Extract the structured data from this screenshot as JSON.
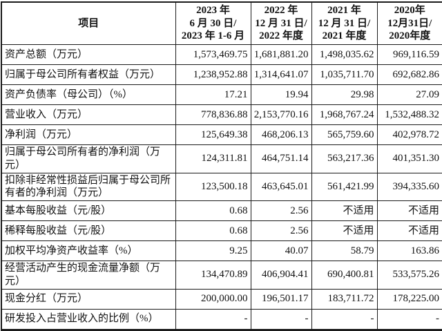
{
  "table": {
    "header": {
      "item_label": "项目",
      "periods": [
        {
          "line1": "2023 年",
          "line2": "6 月 30 日/",
          "line3": "2023 年 1-6 月"
        },
        {
          "line1": "2022 年",
          "line2": "12 月 31 日/",
          "line3": "2022 年度"
        },
        {
          "line1": "2021 年",
          "line2": "12 月 31 日/",
          "line3": "2021 年度"
        },
        {
          "line1": "2020年",
          "line2": "12月31日/",
          "line3": "2020年度"
        }
      ]
    },
    "rows": [
      {
        "label": "资产总额（万元）",
        "values": [
          "1,573,469.75",
          "1,681,881.20",
          "1,498,035.62",
          "969,116.59"
        ]
      },
      {
        "label": "归属于母公司所有者权益（万元）",
        "values": [
          "1,238,952.88",
          "1,314,641.07",
          "1,035,711.70",
          "692,682.86"
        ]
      },
      {
        "label": "资产负债率（母公司）（%）",
        "values": [
          "17.21",
          "19.94",
          "29.98",
          "27.09"
        ]
      },
      {
        "label": "营业收入（万元）",
        "values": [
          "778,836.88",
          "2,153,770.16",
          "1,968,767.24",
          "1,532,488.32"
        ]
      },
      {
        "label": "净利润（万元）",
        "values": [
          "125,649.38",
          "468,206.13",
          "565,759.60",
          "402,978.72"
        ]
      },
      {
        "label": "归属于母公司所有者的净利润（万元）",
        "values": [
          "124,311.81",
          "464,751.14",
          "563,217.36",
          "401,351.30"
        ]
      },
      {
        "label": "扣除非经常性损益后归属于母公司所有者的净利润（万元）",
        "values": [
          "123,500.18",
          "463,645.01",
          "561,421.99",
          "394,335.60"
        ]
      },
      {
        "label": "基本每股收益（元/股）",
        "values": [
          "0.68",
          "2.56",
          "不适用",
          "不适用"
        ]
      },
      {
        "label": "稀释每股收益（元/股）",
        "values": [
          "0.68",
          "2.56",
          "不适用",
          "不适用"
        ]
      },
      {
        "label": "加权平均净资产收益率（%）",
        "values": [
          "9.25",
          "40.07",
          "58.79",
          "163.86"
        ]
      },
      {
        "label": "经营活动产生的现金流量净额（万元）",
        "values": [
          "134,470.89",
          "406,904.41",
          "690,400.81",
          "533,575.26"
        ]
      },
      {
        "label": "现金分红（万元）",
        "values": [
          "200,000.00",
          "196,501.17",
          "183,711.72",
          "178,225.00"
        ]
      },
      {
        "label": "研发投入占营业收入的比例（%）",
        "values": [
          "-",
          "-",
          "-",
          "-"
        ]
      }
    ]
  }
}
